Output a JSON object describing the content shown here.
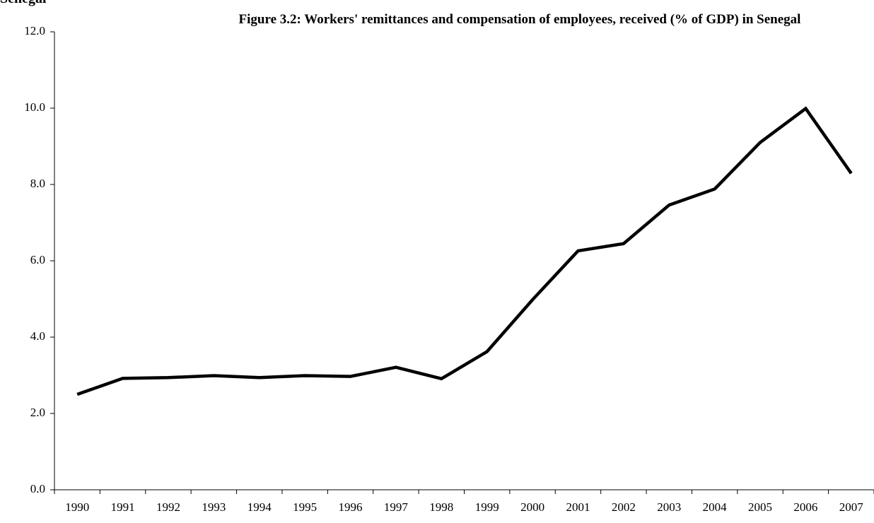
{
  "page_heading": "Senegal",
  "chart_data": {
    "type": "line",
    "title": "Figure 3.2: Workers' remittances and compensation of employees, received (% of GDP) in Senegal",
    "categories": [
      "1990",
      "1991",
      "1992",
      "1993",
      "1994",
      "1995",
      "1996",
      "1997",
      "1998",
      "1999",
      "2000",
      "2001",
      "2002",
      "2003",
      "2004",
      "2005",
      "2006",
      "2007"
    ],
    "series": [
      {
        "name": "Workers' remittances and compensation of employees, received (% of GDP)",
        "color": "#000000",
        "values": [
          2.5,
          2.92,
          2.94,
          2.99,
          2.94,
          2.99,
          2.97,
          3.21,
          2.91,
          3.62,
          4.98,
          6.26,
          6.45,
          7.46,
          7.88,
          9.1,
          9.99,
          8.29
        ]
      }
    ],
    "ylim": [
      0,
      12
    ],
    "yticks": [
      {
        "value": 0,
        "label": "0.0"
      },
      {
        "value": 2,
        "label": "2.0"
      },
      {
        "value": 4,
        "label": "4.0"
      },
      {
        "value": 6,
        "label": "6.0"
      },
      {
        "value": 8,
        "label": "8.0"
      },
      {
        "value": 10,
        "label": "10.0"
      },
      {
        "value": 12,
        "label": "12.0"
      }
    ],
    "grid": false
  }
}
